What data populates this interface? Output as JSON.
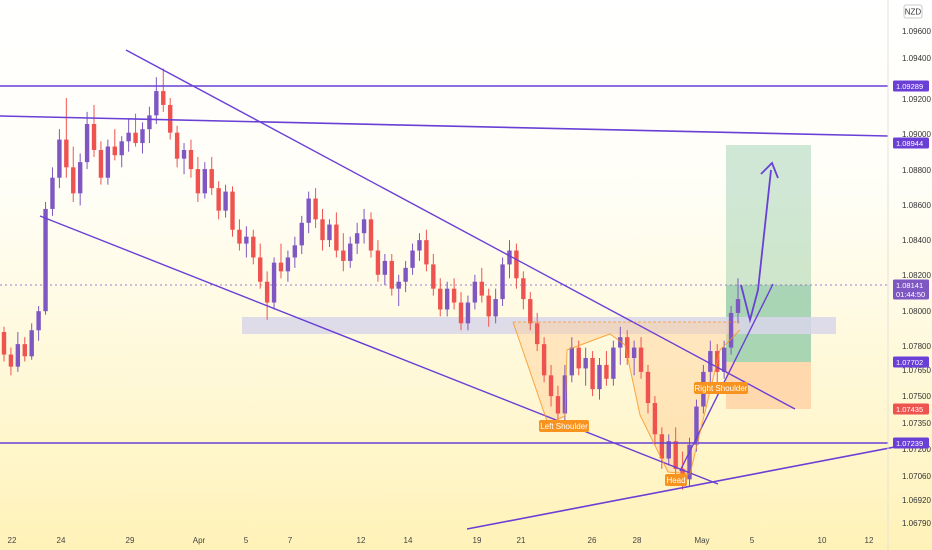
{
  "chart_data": {
    "type": "candlestick",
    "currency_badge": "NZD",
    "ylim": [
      1.0675,
      1.0975
    ],
    "price_axis_ticks": [
      "1.09600",
      "1.09400",
      "1.09200",
      "1.09000",
      "1.08800",
      "1.08600",
      "1.08400",
      "1.08200",
      "1.08000",
      "1.07800",
      "1.07650",
      "1.07500",
      "1.07350",
      "1.07200",
      "1.07060",
      "1.06920",
      "1.06790"
    ],
    "x_ticks": [
      "22",
      "24",
      "29",
      "Apr",
      "5",
      "7",
      "12",
      "14",
      "19",
      "21",
      "26",
      "28",
      "May",
      "5",
      "10",
      "12"
    ],
    "colors": {
      "up": "#7e57c2",
      "down": "#ef5350",
      "lines": "#6a3fd6",
      "profit_zone": "#8cc8a5",
      "loss_zone": "#ffd4a6",
      "sr_zone": "#d9d6ea"
    },
    "candles": [
      [
        1.0795,
        1.0798,
        1.0778,
        1.0782
      ],
      [
        1.0782,
        1.0786,
        1.077,
        1.0775
      ],
      [
        1.0775,
        1.0795,
        1.0772,
        1.0788
      ],
      [
        1.0788,
        1.0792,
        1.0778,
        1.0781
      ],
      [
        1.0781,
        1.08,
        1.0779,
        1.0796
      ],
      [
        1.0796,
        1.081,
        1.079,
        1.0807
      ],
      [
        1.0807,
        1.087,
        1.0805,
        1.0866
      ],
      [
        1.0866,
        1.089,
        1.0862,
        1.0884
      ],
      [
        1.0884,
        1.0912,
        1.0878,
        1.0906
      ],
      [
        1.0906,
        1.093,
        1.0884,
        1.089
      ],
      [
        1.089,
        1.0902,
        1.087,
        1.0875
      ],
      [
        1.0875,
        1.0898,
        1.0868,
        1.0893
      ],
      [
        1.0893,
        1.0922,
        1.0889,
        1.0915
      ],
      [
        1.0915,
        1.0926,
        1.0896,
        1.09
      ],
      [
        1.09,
        1.0905,
        1.088,
        1.0884
      ],
      [
        1.0884,
        1.0906,
        1.088,
        1.0902
      ],
      [
        1.0902,
        1.0912,
        1.0894,
        1.0897
      ],
      [
        1.0897,
        1.0908,
        1.089,
        1.0905
      ],
      [
        1.0905,
        1.0918,
        1.0899,
        1.091
      ],
      [
        1.091,
        1.0921,
        1.0902,
        1.0904
      ],
      [
        1.0904,
        1.0916,
        1.0898,
        1.0912
      ],
      [
        1.0912,
        1.0925,
        1.0904,
        1.092
      ],
      [
        1.092,
        1.0942,
        1.0915,
        1.0934
      ],
      [
        1.0934,
        1.0947,
        1.0922,
        1.0926
      ],
      [
        1.0926,
        1.093,
        1.0906,
        1.091
      ],
      [
        1.091,
        1.0914,
        1.089,
        1.0895
      ],
      [
        1.0895,
        1.0904,
        1.0886,
        1.09
      ],
      [
        1.09,
        1.0906,
        1.0884,
        1.0889
      ],
      [
        1.0889,
        1.0896,
        1.087,
        1.0875
      ],
      [
        1.0875,
        1.0893,
        1.0872,
        1.0889
      ],
      [
        1.0889,
        1.0896,
        1.0874,
        1.0878
      ],
      [
        1.0878,
        1.0882,
        1.086,
        1.0865
      ],
      [
        1.0865,
        1.088,
        1.0861,
        1.0876
      ],
      [
        1.0876,
        1.0879,
        1.085,
        1.0854
      ],
      [
        1.0854,
        1.086,
        1.0842,
        1.0846
      ],
      [
        1.0846,
        1.0856,
        1.0838,
        1.085
      ],
      [
        1.085,
        1.0854,
        1.0834,
        1.0838
      ],
      [
        1.0838,
        1.0846,
        1.082,
        1.0824
      ],
      [
        1.0824,
        1.083,
        1.0802,
        1.0812
      ],
      [
        1.0812,
        1.0838,
        1.0808,
        1.0835
      ],
      [
        1.0835,
        1.0846,
        1.0826,
        1.083
      ],
      [
        1.083,
        1.0842,
        1.0824,
        1.0838
      ],
      [
        1.0838,
        1.085,
        1.0832,
        1.0845
      ],
      [
        1.0845,
        1.0862,
        1.084,
        1.0858
      ],
      [
        1.0858,
        1.0876,
        1.0852,
        1.0872
      ],
      [
        1.0872,
        1.0878,
        1.0855,
        1.086
      ],
      [
        1.086,
        1.0866,
        1.0842,
        1.0848
      ],
      [
        1.0848,
        1.086,
        1.0844,
        1.0857
      ],
      [
        1.0857,
        1.0864,
        1.0838,
        1.0842
      ],
      [
        1.0842,
        1.0852,
        1.083,
        1.0836
      ],
      [
        1.0836,
        1.085,
        1.0832,
        1.0846
      ],
      [
        1.0846,
        1.0858,
        1.084,
        1.0852
      ],
      [
        1.0852,
        1.0866,
        1.0846,
        1.086
      ],
      [
        1.086,
        1.0864,
        1.0838,
        1.0842
      ],
      [
        1.0842,
        1.0848,
        1.0824,
        1.0828
      ],
      [
        1.0828,
        1.084,
        1.0822,
        1.0836
      ],
      [
        1.0836,
        1.084,
        1.0816,
        1.082
      ],
      [
        1.082,
        1.0828,
        1.081,
        1.0824
      ],
      [
        1.0824,
        1.0836,
        1.0818,
        1.0832
      ],
      [
        1.0832,
        1.0846,
        1.0828,
        1.0842
      ],
      [
        1.0842,
        1.0852,
        1.0836,
        1.0848
      ],
      [
        1.0848,
        1.0854,
        1.083,
        1.0834
      ],
      [
        1.0834,
        1.084,
        1.0816,
        1.082
      ],
      [
        1.082,
        1.0826,
        1.0804,
        1.0808
      ],
      [
        1.0808,
        1.0824,
        1.0804,
        1.082
      ],
      [
        1.082,
        1.0826,
        1.0808,
        1.0812
      ],
      [
        1.0812,
        1.0818,
        1.0796,
        1.08
      ],
      [
        1.08,
        1.0816,
        1.0796,
        1.0812
      ],
      [
        1.0812,
        1.0828,
        1.0808,
        1.0824
      ],
      [
        1.0824,
        1.0832,
        1.0812,
        1.0816
      ],
      [
        1.0816,
        1.082,
        1.0798,
        1.0804
      ],
      [
        1.0804,
        1.082,
        1.08,
        1.0814
      ],
      [
        1.0814,
        1.0838,
        1.081,
        1.0834
      ],
      [
        1.0834,
        1.0848,
        1.0826,
        1.0842
      ],
      [
        1.0842,
        1.0846,
        1.082,
        1.0826
      ],
      [
        1.0826,
        1.083,
        1.0808,
        1.0814
      ],
      [
        1.0814,
        1.0818,
        1.0796,
        1.08
      ],
      [
        1.08,
        1.0806,
        1.0784,
        1.0788
      ],
      [
        1.0788,
        1.0792,
        1.0766,
        1.077
      ],
      [
        1.077,
        1.0776,
        1.0752,
        1.0758
      ],
      [
        1.0758,
        1.0764,
        1.0742,
        1.0748
      ],
      [
        1.0748,
        1.0776,
        1.0744,
        1.077
      ],
      [
        1.077,
        1.0792,
        1.0766,
        1.0786
      ],
      [
        1.0786,
        1.079,
        1.077,
        1.0774
      ],
      [
        1.0774,
        1.0786,
        1.0764,
        1.078
      ],
      [
        1.078,
        1.0784,
        1.0758,
        1.0762
      ],
      [
        1.0762,
        1.078,
        1.0756,
        1.0776
      ],
      [
        1.0776,
        1.0784,
        1.0764,
        1.0768
      ],
      [
        1.0768,
        1.079,
        1.0764,
        1.0786
      ],
      [
        1.0786,
        1.0798,
        1.0776,
        1.0792
      ],
      [
        1.0792,
        1.0796,
        1.0776,
        1.078
      ],
      [
        1.078,
        1.079,
        1.077,
        1.0786
      ],
      [
        1.0786,
        1.0792,
        1.0768,
        1.0772
      ],
      [
        1.0772,
        1.0776,
        1.0748,
        1.0754
      ],
      [
        1.0754,
        1.0758,
        1.073,
        1.0736
      ],
      [
        1.0736,
        1.074,
        1.0716,
        1.0722
      ],
      [
        1.0722,
        1.0736,
        1.0718,
        1.0732
      ],
      [
        1.0732,
        1.074,
        1.0712,
        1.0716
      ],
      [
        1.0716,
        1.0726,
        1.0704,
        1.071
      ],
      [
        1.071,
        1.0734,
        1.0706,
        1.073
      ],
      [
        1.073,
        1.0756,
        1.0726,
        1.0752
      ],
      [
        1.0752,
        1.0776,
        1.0748,
        1.0772
      ],
      [
        1.0772,
        1.079,
        1.0766,
        1.0784
      ],
      [
        1.0784,
        1.0788,
        1.0766,
        1.0772
      ],
      [
        1.0772,
        1.079,
        1.0768,
        1.0786
      ],
      [
        1.0786,
        1.081,
        1.0782,
        1.0806
      ],
      [
        1.0806,
        1.0826,
        1.08,
        1.0814
      ]
    ],
    "annotations": [
      {
        "label": "Left Shoulder",
        "color": "#f7931e"
      },
      {
        "label": "Head",
        "color": "#f7931e"
      },
      {
        "label": "Right Shoulder",
        "color": "#f7931e"
      }
    ],
    "price_tags": [
      {
        "value": "1.09289",
        "color": "#6a3fd6"
      },
      {
        "value": "1.08944",
        "color": "#6a3fd6"
      },
      {
        "value": "1.08141",
        "sub": "01:44:50",
        "color": "#7e57c2"
      },
      {
        "value": "1.07702",
        "color": "#6a3fd6"
      },
      {
        "value": "1.07435",
        "color": "#ef5350"
      },
      {
        "value": "1.07239",
        "color": "#6a3fd6"
      }
    ]
  }
}
